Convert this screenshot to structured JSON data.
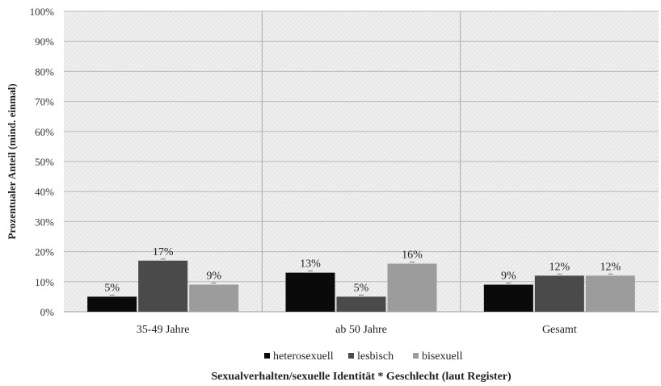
{
  "chart_data": {
    "type": "bar",
    "categories": [
      "35-49 Jahre",
      "ab 50 Jahre",
      "Gesamt"
    ],
    "series": [
      {
        "name": "heterosexuell",
        "color": "#0a0a0a",
        "values": [
          5,
          13,
          9
        ]
      },
      {
        "name": "lesbisch",
        "color": "#4a4a4a",
        "values": [
          17,
          5,
          12
        ]
      },
      {
        "name": "bisexuell",
        "color": "#9c9c9c",
        "values": [
          9,
          16,
          12
        ]
      }
    ],
    "data_labels": [
      [
        "5%",
        "13%",
        "9%"
      ],
      [
        "17%",
        "5%",
        "12%"
      ],
      [
        "9%",
        "16%",
        "12%"
      ]
    ],
    "title": "",
    "xlabel": "Sexualverhalten/sexuelle Identität * Geschlecht (laut Register)",
    "ylabel": "Prozentualer Anteil (mind. einmal)",
    "ylim": [
      0,
      100
    ],
    "yticks": [
      "0%",
      "10%",
      "20%",
      "30%",
      "40%",
      "50%",
      "60%",
      "70%",
      "80%",
      "90%",
      "100%"
    ],
    "grid": true,
    "legend_position": "bottom",
    "plot_background": "hatched-gray"
  }
}
